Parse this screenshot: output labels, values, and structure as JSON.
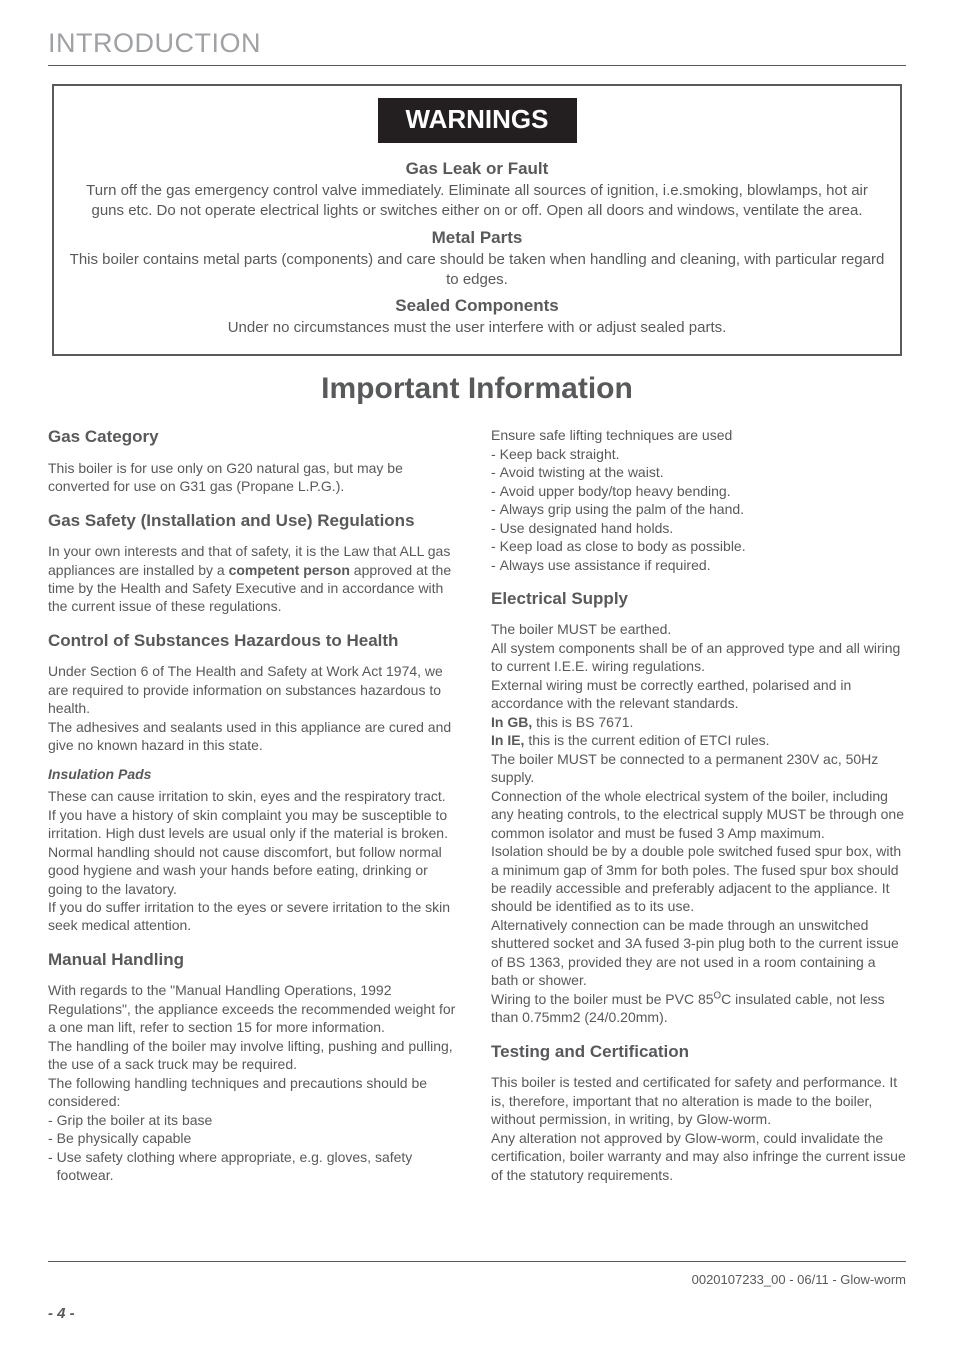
{
  "header": {
    "section_label": "INTRODUCTION"
  },
  "warnings": {
    "badge": "WARNINGS",
    "items": [
      {
        "title": "Gas Leak or Fault",
        "body": "Turn off the gas emergency control valve immediately. Eliminate all sources of ignition, i.e.smoking, blowlamps, hot air guns etc. Do not operate electrical lights or switches either on or off. Open all doors and windows, ventilate the area."
      },
      {
        "title": "Metal Parts",
        "body": "This boiler contains metal parts (components) and care should be taken when handling and cleaning, with particular regard to edges."
      },
      {
        "title": "Sealed Components",
        "body": "Under no circumstances must the user interfere with or adjust sealed parts."
      }
    ]
  },
  "important_title": "Important Information",
  "left": {
    "gas_category": {
      "heading": "Gas Category",
      "body": "This boiler is for use only on G20 natural gas, but may be converted for use on G31 gas (Propane L.P.G.)."
    },
    "gas_safety": {
      "heading": "Gas Safety (Installation and Use) Regulations",
      "body_pre": "In your own interests and that of safety, it is the Law  that ALL gas appliances are installed by a ",
      "bold": "competent person",
      "body_post": " approved at the time by the Health and Safety Executive and in accordance with the current issue of these regulations."
    },
    "coshh": {
      "heading": "Control of Substances Hazardous to Health",
      "p1": "Under Section 6 of The Health and Safety at Work Act 1974, we are required to provide information on substances hazardous to health.",
      "p2": "The adhesives and sealants used in this appliance are cured and give no known hazard in this state.",
      "sub": "Insulation Pads",
      "p3": "These can cause irritation to skin, eyes and the respiratory tract.",
      "p4": "If you have a history of skin complaint you may be susceptible to irritation. High dust levels are usual only if the material is broken.",
      "p5": "Normal handling should not cause discomfort, but follow normal good hygiene and wash your hands before eating, drinking or going to the lavatory.",
      "p6": "If you do suffer irritation to the eyes or severe irritation to the skin seek medical attention."
    },
    "manual_handling": {
      "heading": "Manual Handling",
      "p1": "With regards to the \"Manual Handling Operations, 1992 Regulations\", the appliance exceeds the recommended weight for a one man lift, refer to section 15 for more information.",
      "p2": "The handling of the boiler may involve lifting, pushing and pulling, the use of a sack truck may be required.",
      "p3": "The following handling techniques and precautions should be considered:",
      "bullets": [
        "Grip the boiler at its base",
        "Be physically capable",
        "Use safety clothing where appropriate, e.g. gloves, safety footwear."
      ]
    }
  },
  "right": {
    "lifting": {
      "intro": "Ensure safe lifting techniques are used",
      "bullets": [
        "Keep back straight.",
        "Avoid twisting at the waist.",
        "Avoid upper body/top heavy bending.",
        "Always grip using the palm of the hand.",
        "Use designated hand holds.",
        "Keep load as close to body as possible.",
        "Always use assistance if required."
      ]
    },
    "electrical": {
      "heading": "Electrical Supply",
      "p1": "The boiler MUST be earthed.",
      "p2": "All system components shall be of an approved type and all wiring to current I.E.E. wiring regulations.",
      "p3": "External wiring must be correctly earthed, polarised and in accordance with the relevant standards.",
      "p4_bold": "In GB,",
      "p4_rest": " this is BS 7671.",
      "p5_bold": "In IE,",
      "p5_rest": " this is the current edition of ETCI rules.",
      "p6": "The boiler MUST be connected to a permanent 230V ac, 50Hz supply.",
      "p7": "Connection of the whole electrical system of the boiler, including any heating controls, to the electrical supply MUST be through one common isolator and must be fused 3 Amp maximum.",
      "p8": "Isolation should be by a double pole switched fused spur box, with a minimum gap of 3mm for both poles.  The fused spur box should be readily accessible and preferably adjacent to the appliance. It should be identified as to its use.",
      "p9": "Alternatively connection can be made through an unswitched shuttered socket and 3A fused 3-pin plug both to the current issue of BS 1363, provided they are not used in a room containing a bath or shower.",
      "p10_pre": "Wiring to the boiler must be PVC 85",
      "p10_sup": "O",
      "p10_post": "C insulated cable, not less than 0.75mm2 (24/0.20mm)."
    },
    "testing": {
      "heading": "Testing and Certification",
      "p1": "This boiler is tested and certificated for safety and performance. It is, therefore, important that no alteration is made to the boiler, without permission, in writing, by Glow-worm.",
      "p2": "Any alteration not approved by Glow-worm, could invalidate the certification, boiler warranty and may also infringe the current issue of the statutory requirements."
    }
  },
  "footer": {
    "right": "0020107233_00 - 06/11 - Glow-worm",
    "page": "- 4 -"
  }
}
